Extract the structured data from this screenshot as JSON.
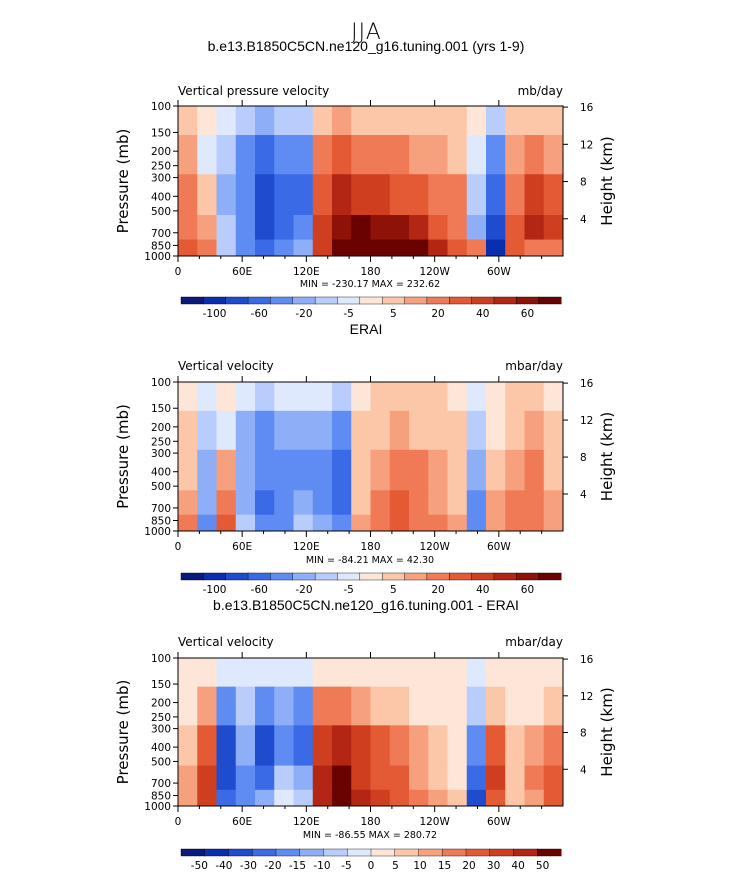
{
  "figure": {
    "season": "JJA"
  },
  "chart_data": [
    {
      "type": "heatmap",
      "title": "b.e13.B1850C5CN.ne120_g16.tuning.001 (yrs 1-9)",
      "left_label": "Vertical pressure velocity",
      "right_label": "mb/day",
      "ylabel": "Pressure (mb)",
      "ylabel_right": "Height (km)",
      "x_ticks": [
        "0",
        "60E",
        "120E",
        "180",
        "120W",
        "60W"
      ],
      "x_tick_values": [
        0,
        60,
        120,
        180,
        240,
        300
      ],
      "xlim": [
        0,
        360
      ],
      "y_ticks": [
        "100",
        "150",
        "200",
        "250",
        "300",
        "400",
        "500",
        "700",
        "850",
        "1000"
      ],
      "y_tick_values": [
        100,
        150,
        200,
        250,
        300,
        400,
        500,
        700,
        850,
        1000
      ],
      "ylim": [
        1000,
        100
      ],
      "yscale": "log",
      "y2_ticks": [
        "16",
        "12",
        "8",
        "4"
      ],
      "y2_tick_values": [
        16,
        12,
        8,
        4
      ],
      "minmax_text": "MIN = -230.17   MAX = 232.62",
      "min": -230.17,
      "max": 232.62,
      "colorbar": {
        "labels": [
          "-100",
          "-60",
          "-20",
          "-5",
          "5",
          "20",
          "40",
          "60"
        ],
        "levels": [
          -100,
          -80,
          -60,
          -40,
          -20,
          -10,
          -5,
          -1,
          1,
          5,
          10,
          20,
          30,
          40,
          50,
          60
        ],
        "colors": [
          "#0a1a7a",
          "#0a2eb0",
          "#1f4ccf",
          "#3a6ae6",
          "#5f8cf2",
          "#8eaef7",
          "#b8cdfb",
          "#dfe9fe",
          "#fde6d8",
          "#fbc7a8",
          "#f6a07d",
          "#ef7a55",
          "#e35a35",
          "#cf3e1f",
          "#b32613",
          "#8e1208",
          "#6a0202"
        ]
      },
      "values": [
        [
          20,
          10,
          -8,
          -25,
          -60,
          -40,
          -20,
          30,
          60,
          80,
          90,
          80,
          60,
          40,
          20,
          10,
          -100,
          20,
          15,
          10
        ],
        [
          15,
          6,
          -10,
          -30,
          -70,
          -50,
          -30,
          30,
          50,
          60,
          55,
          50,
          40,
          25,
          15,
          -20,
          -80,
          20,
          40,
          30
        ],
        [
          10,
          2,
          -15,
          -40,
          -80,
          -60,
          -60,
          25,
          40,
          35,
          30,
          25,
          20,
          15,
          10,
          -10,
          -60,
          15,
          30,
          20
        ],
        [
          5,
          -2,
          -10,
          -30,
          -50,
          -40,
          -30,
          15,
          20,
          15,
          10,
          10,
          8,
          5,
          3,
          -3,
          -30,
          5,
          10,
          5
        ],
        [
          1,
          -1,
          -3,
          -8,
          -15,
          -10,
          -8,
          3,
          5,
          4,
          3,
          2,
          2,
          1,
          1,
          -1,
          -6,
          1,
          2,
          1
        ]
      ],
      "x": [
        9,
        27,
        45,
        63,
        81,
        99,
        117,
        135,
        153,
        171,
        189,
        207,
        225,
        243,
        261,
        279,
        297,
        315,
        333,
        351
      ],
      "y": [
        850,
        700,
        400,
        200,
        120
      ],
      "units": "mb/day"
    },
    {
      "type": "heatmap",
      "title": "ERAI",
      "left_label": "Vertical velocity",
      "right_label": "mbar/day",
      "ylabel": "Pressure (mb)",
      "ylabel_right": "Height (km)",
      "x_ticks": [
        "0",
        "60E",
        "120E",
        "180",
        "120W",
        "60W"
      ],
      "x_tick_values": [
        0,
        60,
        120,
        180,
        240,
        300
      ],
      "xlim": [
        0,
        360
      ],
      "y_ticks": [
        "100",
        "150",
        "200",
        "250",
        "300",
        "400",
        "500",
        "700",
        "850",
        "1000"
      ],
      "y_tick_values": [
        100,
        150,
        200,
        250,
        300,
        400,
        500,
        700,
        850,
        1000
      ],
      "ylim": [
        1000,
        100
      ],
      "yscale": "log",
      "y2_ticks": [
        "16",
        "12",
        "8",
        "4"
      ],
      "y2_tick_values": [
        16,
        12,
        8,
        4
      ],
      "minmax_text": "MIN = -84.21   MAX =  42.30",
      "min": -84.21,
      "max": 42.3,
      "colorbar": {
        "labels": [
          "-100",
          "-60",
          "-20",
          "-5",
          "5",
          "20",
          "40",
          "60"
        ],
        "levels": [
          -100,
          -80,
          -60,
          -40,
          -20,
          -10,
          -5,
          -1,
          1,
          5,
          10,
          20,
          30,
          40,
          50,
          60
        ],
        "colors": [
          "#0a1a7a",
          "#0a2eb0",
          "#1f4ccf",
          "#3a6ae6",
          "#5f8cf2",
          "#8eaef7",
          "#b8cdfb",
          "#dfe9fe",
          "#fde6d8",
          "#fbc7a8",
          "#f6a07d",
          "#ef7a55",
          "#e35a35",
          "#cf3e1f",
          "#b32613",
          "#8e1208",
          "#6a0202"
        ]
      },
      "values": [
        [
          10,
          -25,
          20,
          -10,
          -40,
          -30,
          -10,
          -20,
          -40,
          5,
          15,
          20,
          15,
          10,
          5,
          -40,
          8,
          15,
          10,
          5
        ],
        [
          5,
          -20,
          15,
          -15,
          -50,
          -40,
          -20,
          -35,
          -60,
          3,
          12,
          25,
          12,
          8,
          4,
          -30,
          5,
          12,
          12,
          5
        ],
        [
          3,
          -15,
          5,
          -20,
          -40,
          -35,
          -30,
          -40,
          -50,
          2,
          8,
          15,
          10,
          6,
          3,
          -20,
          2,
          8,
          10,
          4
        ],
        [
          1,
          -8,
          -3,
          -15,
          -25,
          -20,
          -15,
          -20,
          -25,
          1,
          3,
          5,
          4,
          3,
          1,
          -10,
          -1,
          3,
          5,
          2
        ],
        [
          0,
          -2,
          -1,
          -4,
          -6,
          -5,
          -3,
          -5,
          -6,
          0,
          1,
          1,
          1,
          1,
          0,
          -2,
          0,
          1,
          1,
          0
        ]
      ],
      "x": [
        9,
        27,
        45,
        63,
        81,
        99,
        117,
        135,
        153,
        171,
        189,
        207,
        225,
        243,
        261,
        279,
        297,
        315,
        333,
        351
      ],
      "y": [
        850,
        700,
        400,
        200,
        120
      ],
      "units": "mbar/day"
    },
    {
      "type": "heatmap",
      "title": "b.e13.B1850C5CN.ne120_g16.tuning.001 - ERAI",
      "left_label": "Vertical velocity",
      "right_label": "mbar/day",
      "ylabel": "Pressure (mb)",
      "ylabel_right": "Height (km)",
      "x_ticks": [
        "0",
        "60E",
        "120E",
        "180",
        "120W",
        "60W"
      ],
      "x_tick_values": [
        0,
        60,
        120,
        180,
        240,
        300
      ],
      "xlim": [
        0,
        360
      ],
      "y_ticks": [
        "100",
        "150",
        "200",
        "250",
        "300",
        "400",
        "500",
        "700",
        "850",
        "1000"
      ],
      "y_tick_values": [
        100,
        150,
        200,
        250,
        300,
        400,
        500,
        700,
        850,
        1000
      ],
      "ylim": [
        1000,
        100
      ],
      "yscale": "log",
      "y2_ticks": [
        "16",
        "12",
        "8",
        "4"
      ],
      "y2_tick_values": [
        16,
        12,
        8,
        4
      ],
      "minmax_text": "MIN = -86.55   MAX = 280.72",
      "min": -86.55,
      "max": 280.72,
      "colorbar": {
        "labels": [
          "-50",
          "-40",
          "-30",
          "-20",
          "-15",
          "-10",
          "-5",
          "0",
          "5",
          "10",
          "15",
          "20",
          "30",
          "40",
          "50"
        ],
        "levels": [
          -50,
          -40,
          -30,
          -20,
          -15,
          -10,
          -5,
          0,
          5,
          10,
          15,
          20,
          30,
          40,
          50
        ],
        "colors": [
          "#0a1a7a",
          "#0a2eb0",
          "#1f4ccf",
          "#3a6ae6",
          "#5f8cf2",
          "#8eaef7",
          "#b8cdfb",
          "#dfe9fe",
          "#fde6d8",
          "#fbc7a8",
          "#f6a07d",
          "#ef7a55",
          "#e35a35",
          "#cf3e1f",
          "#b32613",
          "#6a0202"
        ]
      },
      "values": [
        [
          10,
          35,
          -30,
          -20,
          -15,
          -5,
          -10,
          45,
          55,
          40,
          30,
          25,
          15,
          10,
          5,
          -40,
          25,
          5,
          10,
          20
        ],
        [
          10,
          30,
          -35,
          -20,
          -25,
          -10,
          -15,
          40,
          50,
          35,
          25,
          20,
          12,
          8,
          4,
          -30,
          30,
          8,
          15,
          20
        ],
        [
          8,
          25,
          -40,
          -15,
          -35,
          -20,
          -30,
          35,
          40,
          30,
          20,
          15,
          10,
          6,
          3,
          -20,
          20,
          6,
          10,
          15
        ],
        [
          4,
          12,
          -20,
          -10,
          -20,
          -15,
          -20,
          15,
          15,
          10,
          8,
          5,
          4,
          2,
          1,
          -10,
          8,
          2,
          4,
          6
        ],
        [
          1,
          3,
          -5,
          -3,
          -5,
          -4,
          -5,
          4,
          4,
          3,
          2,
          1,
          1,
          0,
          0,
          -3,
          2,
          0,
          1,
          1
        ]
      ],
      "x": [
        9,
        27,
        45,
        63,
        81,
        99,
        117,
        135,
        153,
        171,
        189,
        207,
        225,
        243,
        261,
        279,
        297,
        315,
        333,
        351
      ],
      "y": [
        850,
        700,
        400,
        200,
        120
      ],
      "units": "mbar/day"
    }
  ]
}
